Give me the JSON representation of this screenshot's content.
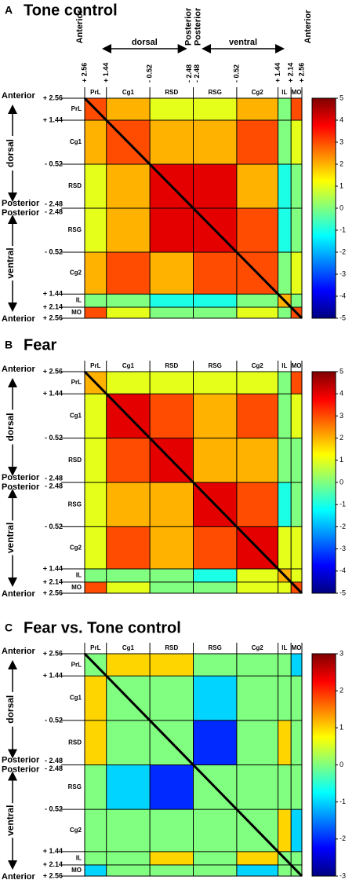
{
  "chart_data": [
    {
      "type": "heatmap",
      "panel_label": "A",
      "title": "Tone control",
      "top_coordinates": true,
      "categories": [
        "PrL",
        "Cg1",
        "RSD",
        "RSG",
        "Cg2",
        "IL",
        "MO"
      ],
      "boundary_labels": [
        "+ 2.56",
        "+ 1.44",
        "- 0.52",
        "- 2.48",
        "- 2.48",
        "- 0.52",
        "+ 1.44",
        "+ 2.14",
        "+ 2.56"
      ],
      "side_labels": {
        "anterior": "Anterior",
        "posterior": "Posterior",
        "dorsal": "dorsal",
        "ventral": "ventral"
      },
      "values": [
        [
          3,
          2,
          1,
          1,
          2,
          0,
          3
        ],
        [
          2,
          3,
          2,
          2,
          3,
          0,
          1
        ],
        [
          1,
          2,
          4,
          4,
          2,
          -1,
          0
        ],
        [
          1,
          2,
          4,
          4,
          3,
          -1,
          0
        ],
        [
          2,
          3,
          2,
          3,
          3,
          0,
          1
        ],
        [
          0,
          0,
          -1,
          -1,
          0,
          2,
          0
        ],
        [
          3,
          1,
          0,
          0,
          1,
          0,
          3
        ]
      ],
      "zlim": [
        -5,
        5
      ],
      "zticks": [
        5,
        4,
        3,
        2,
        1,
        0,
        -1,
        -2,
        -3,
        -4,
        -5
      ],
      "colormap": "jet"
    },
    {
      "type": "heatmap",
      "panel_label": "B",
      "title": "Fear",
      "top_coordinates": false,
      "categories": [
        "PrL",
        "Cg1",
        "RSD",
        "RSG",
        "Cg2",
        "IL",
        "MO"
      ],
      "boundary_labels": [
        "+ 2.56",
        "+ 1.44",
        "- 0.52",
        "- 2.48",
        "- 2.48",
        "- 0.52",
        "+ 1.44",
        "+ 2.14",
        "+ 2.56"
      ],
      "side_labels": {
        "anterior": "Anterior",
        "posterior": "Posterior",
        "dorsal": "dorsal",
        "ventral": "ventral"
      },
      "values": [
        [
          2,
          1,
          1,
          1,
          1,
          0,
          3
        ],
        [
          1,
          4,
          3,
          2,
          3,
          0,
          1
        ],
        [
          1,
          3,
          4,
          2,
          2,
          0,
          0
        ],
        [
          1,
          2,
          2,
          4,
          3,
          -1,
          0
        ],
        [
          1,
          3,
          2,
          3,
          4,
          1,
          1
        ],
        [
          0,
          0,
          0,
          -1,
          1,
          2,
          1
        ],
        [
          3,
          1,
          0,
          0,
          1,
          1,
          3
        ]
      ],
      "zlim": [
        -5,
        5
      ],
      "zticks": [
        5,
        4,
        3,
        2,
        1,
        0,
        -1,
        -2,
        -3,
        -4,
        -5
      ],
      "colormap": "jet"
    },
    {
      "type": "heatmap",
      "panel_label": "C",
      "title": "Fear vs. Tone control",
      "top_coordinates": false,
      "categories": [
        "PrL",
        "Cg1",
        "RSD",
        "RSG",
        "Cg2",
        "IL",
        "MO"
      ],
      "boundary_labels": [
        "+ 2.56",
        "+ 1.44",
        "- 0.52",
        "- 2.48",
        "- 2.48",
        "- 0.52",
        "+ 1.44",
        "+ 2.14",
        "+ 2.56"
      ],
      "side_labels": {
        "anterior": "Anterior",
        "posterior": "Posterior",
        "dorsal": "dorsal",
        "ventral": "ventral"
      },
      "values": [
        [
          0,
          1,
          1,
          0,
          0,
          0,
          -1
        ],
        [
          1,
          0,
          0,
          -1,
          0,
          0,
          0
        ],
        [
          1,
          0,
          0,
          -2,
          0,
          1,
          0
        ],
        [
          0,
          -1,
          -2,
          0,
          0,
          0,
          0
        ],
        [
          0,
          0,
          0,
          0,
          0,
          1,
          -1
        ],
        [
          0,
          0,
          1,
          0,
          1,
          0,
          0
        ],
        [
          -1,
          0,
          0,
          0,
          -1,
          0,
          0
        ]
      ],
      "zlim": [
        -3,
        3
      ],
      "zticks": [
        3,
        2,
        1,
        0,
        -1,
        -2,
        -3
      ],
      "colormap": "jet"
    }
  ]
}
